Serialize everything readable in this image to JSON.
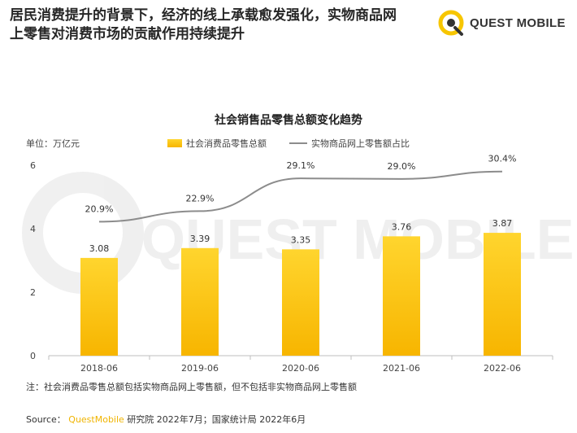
{
  "header": {
    "title_line1": "居民消费提升的背景下，经济的线上承载愈发强化，实物商品网",
    "title_line2": "上零售对消费市场的贡献作用持续提升"
  },
  "logo": {
    "text": "QUEST MOBILE",
    "icon": "quest-mobile-logo-icon",
    "accent": "#f7c600"
  },
  "watermark": {
    "text": "QUEST MOBILE"
  },
  "chart_data": {
    "type": "bar",
    "title": "社会销售品零售总额变化趋势",
    "unit_label": "单位：万亿元",
    "categories": [
      "2018-06",
      "2019-06",
      "2020-06",
      "2021-06",
      "2022-06"
    ],
    "ylim": [
      0,
      6
    ],
    "yticks": [
      "0",
      "2",
      "4",
      "6"
    ],
    "series": [
      {
        "name": "社会消费品零售总额",
        "type": "bar",
        "values": [
          3.08,
          3.39,
          3.35,
          3.76,
          3.87
        ],
        "labels": [
          "3.08",
          "3.39",
          "3.35",
          "3.76",
          "3.87"
        ],
        "color": "#f7b500"
      },
      {
        "name": "实物商品网上零售额占比",
        "type": "line",
        "values": [
          20.9,
          22.9,
          29.1,
          29.0,
          30.4
        ],
        "labels": [
          "20.9%",
          "22.9%",
          "29.1%",
          "29.0%",
          "30.4%"
        ],
        "color": "#8c8c8c"
      }
    ],
    "legend_position": "top",
    "grid": false
  },
  "footer": {
    "note": "注：社会消费品零售总额包括实物商品网上零售额，但不包括非实物商品网上零售额",
    "source_prefix": "Source：",
    "source_brand": "QuestMobile",
    "source_rest": " 研究院 2022年7月；国家统计局 2022年6月"
  }
}
